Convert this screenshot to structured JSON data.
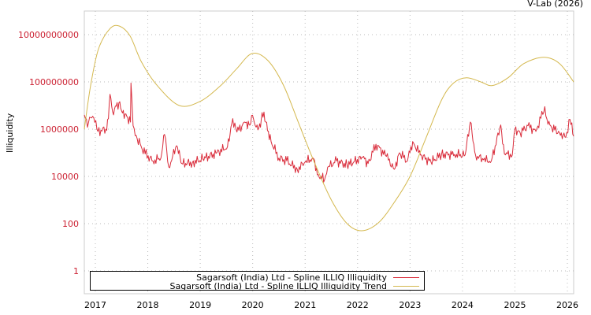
{
  "credit": "V-Lab (2026)",
  "chart_data": {
    "type": "line",
    "title": "",
    "xlabel": "",
    "ylabel": "Illiquidity",
    "yscale": "log",
    "ylim": [
      0.3,
      800000000000
    ],
    "y_ticks": [
      {
        "value": 10000000000,
        "label": "10000000000"
      },
      {
        "value": 100000000,
        "label": "100000000"
      },
      {
        "value": 1000000,
        "label": "1000000"
      },
      {
        "value": 10000,
        "label": "10000"
      },
      {
        "value": 100,
        "label": "100"
      },
      {
        "value": 1,
        "label": "1"
      }
    ],
    "x_ticks": [
      "2017",
      "2018",
      "2019",
      "2020",
      "2021",
      "2022",
      "2023",
      "2024",
      "2025",
      "2026"
    ],
    "xlim": [
      2016.79,
      2026.12
    ],
    "grid": true,
    "legend_position": "bottom-left inside",
    "series": [
      {
        "name": "Sagarsoft (India) Ltd - Spline ILLIQ Illiquidity",
        "color": "#d92b3a",
        "points": [
          [
            2016.79,
            4000000
          ],
          [
            2016.85,
            1200000
          ],
          [
            2016.89,
            3200000
          ],
          [
            2016.97,
            3000000
          ],
          [
            2017.05,
            800000
          ],
          [
            2017.2,
            1000000
          ],
          [
            2017.25,
            2800000
          ],
          [
            2017.28,
            30000000
          ],
          [
            2017.33,
            5500000
          ],
          [
            2017.45,
            13000000
          ],
          [
            2017.5,
            6000000
          ],
          [
            2017.6,
            3500000
          ],
          [
            2017.67,
            2000000
          ],
          [
            2017.68,
            90000000
          ],
          [
            2017.72,
            1400000
          ],
          [
            2017.8,
            380000
          ],
          [
            2017.95,
            90000
          ],
          [
            2018.1,
            45000
          ],
          [
            2018.25,
            60000
          ],
          [
            2018.32,
            600000
          ],
          [
            2018.4,
            25000
          ],
          [
            2018.55,
            200000
          ],
          [
            2018.65,
            35000
          ],
          [
            2018.85,
            38000
          ],
          [
            2019.05,
            55000
          ],
          [
            2019.3,
            95000
          ],
          [
            2019.52,
            180000
          ],
          [
            2019.62,
            2800000
          ],
          [
            2019.7,
            750000
          ],
          [
            2019.85,
            2000000
          ],
          [
            2019.95,
            1500000
          ],
          [
            2019.98,
            3800000
          ],
          [
            2020.05,
            1400000
          ],
          [
            2020.15,
            1200000
          ],
          [
            2020.18,
            5000000
          ],
          [
            2020.25,
            2000000
          ],
          [
            2020.35,
            300000
          ],
          [
            2020.5,
            60000
          ],
          [
            2020.65,
            45000
          ],
          [
            2020.85,
            20000
          ],
          [
            2021.0,
            40000
          ],
          [
            2021.15,
            60000
          ],
          [
            2021.25,
            12000
          ],
          [
            2021.37,
            7000
          ],
          [
            2021.45,
            27000
          ],
          [
            2021.6,
            45000
          ],
          [
            2021.8,
            30000
          ],
          [
            2022.1,
            64000
          ],
          [
            2022.2,
            35000
          ],
          [
            2022.35,
            230000
          ],
          [
            2022.55,
            70000
          ],
          [
            2022.7,
            20000
          ],
          [
            2022.8,
            100000
          ],
          [
            2022.95,
            45000
          ],
          [
            2023.05,
            300000
          ],
          [
            2023.2,
            80000
          ],
          [
            2023.4,
            40000
          ],
          [
            2023.6,
            85000
          ],
          [
            2023.85,
            85000
          ],
          [
            2024.05,
            80000
          ],
          [
            2024.15,
            2000000
          ],
          [
            2024.25,
            80000
          ],
          [
            2024.4,
            50000
          ],
          [
            2024.55,
            45000
          ],
          [
            2024.73,
            1500000
          ],
          [
            2024.8,
            90000
          ],
          [
            2024.95,
            80000
          ],
          [
            2025.0,
            1000000
          ],
          [
            2025.1,
            700000
          ],
          [
            2025.25,
            1400000
          ],
          [
            2025.4,
            800000
          ],
          [
            2025.57,
            9000000
          ],
          [
            2025.63,
            1600000
          ],
          [
            2025.85,
            700000
          ],
          [
            2025.97,
            450000
          ],
          [
            2026.05,
            2600000
          ],
          [
            2026.12,
            500000
          ]
        ]
      },
      {
        "name": "Sagarsoft (India) Ltd - Spline ILLIQ Illiquidity Trend",
        "color": "#d4b84e",
        "points": [
          [
            2016.79,
            1000000
          ],
          [
            2016.91,
            70000000
          ],
          [
            2017.06,
            2500000000
          ],
          [
            2017.28,
            18000000000
          ],
          [
            2017.46,
            23000000000
          ],
          [
            2017.66,
            9000000000
          ],
          [
            2017.88,
            700000000
          ],
          [
            2018.18,
            70000000
          ],
          [
            2018.6,
            10000000
          ],
          [
            2019.0,
            15000000
          ],
          [
            2019.39,
            70000000
          ],
          [
            2019.69,
            350000000
          ],
          [
            2019.99,
            1600000000
          ],
          [
            2020.29,
            800000000
          ],
          [
            2020.59,
            70000000
          ],
          [
            2020.89,
            1500000
          ],
          [
            2021.19,
            33000
          ],
          [
            2021.5,
            1000
          ],
          [
            2021.8,
            100
          ],
          [
            2022.08,
            50
          ],
          [
            2022.4,
            110
          ],
          [
            2022.7,
            800
          ],
          [
            2023.0,
            10000
          ],
          [
            2023.3,
            400000
          ],
          [
            2023.6,
            17000000
          ],
          [
            2023.83,
            90000000
          ],
          [
            2024.08,
            150000000
          ],
          [
            2024.35,
            100000000
          ],
          [
            2024.57,
            70000000
          ],
          [
            2024.87,
            150000000
          ],
          [
            2025.17,
            600000000
          ],
          [
            2025.55,
            1100000000
          ],
          [
            2025.85,
            600000000
          ],
          [
            2026.12,
            100000000
          ]
        ]
      }
    ]
  },
  "legend": {
    "items": [
      {
        "label": "Sagarsoft (India) Ltd - Spline ILLIQ Illiquidity",
        "color": "#d92b3a"
      },
      {
        "label": "Sagarsoft (India) Ltd - Spline ILLIQ Illiquidity Trend",
        "color": "#d4b84e"
      }
    ]
  }
}
